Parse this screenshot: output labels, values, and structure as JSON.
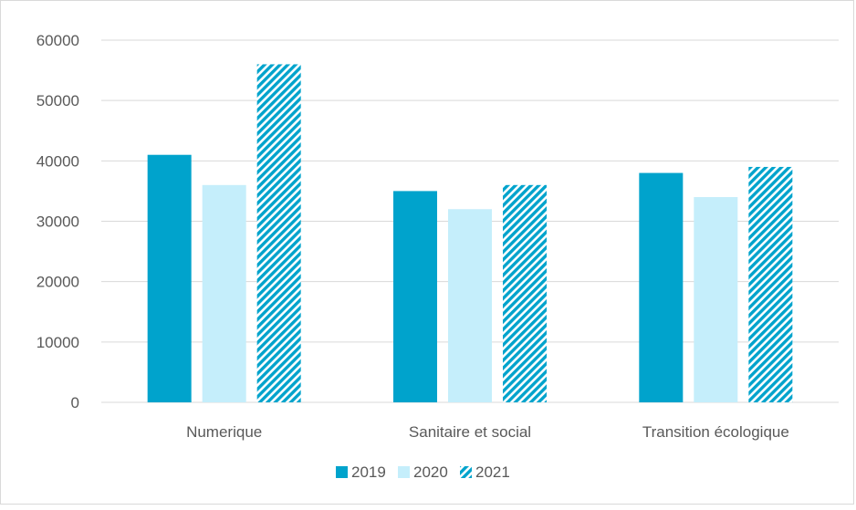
{
  "chart_data": {
    "type": "bar",
    "categories": [
      "Numerique",
      "Sanitaire et social",
      "Transition écologique"
    ],
    "series": [
      {
        "name": "2019",
        "values": [
          41000,
          35000,
          38000
        ],
        "color": "#00a3cc",
        "pattern": "solid"
      },
      {
        "name": "2020",
        "values": [
          36000,
          32000,
          34000
        ],
        "color": "#c5eefb",
        "pattern": "solid"
      },
      {
        "name": "2021",
        "values": [
          56000,
          36000,
          39000
        ],
        "color": "#00a3cc",
        "pattern": "diagonal-stripes"
      }
    ],
    "ylim": [
      0,
      60000
    ],
    "yticks": [
      0,
      10000,
      20000,
      30000,
      40000,
      50000,
      60000
    ],
    "grid": true,
    "legend_position": "bottom",
    "title": "",
    "xlabel": "",
    "ylabel": ""
  }
}
